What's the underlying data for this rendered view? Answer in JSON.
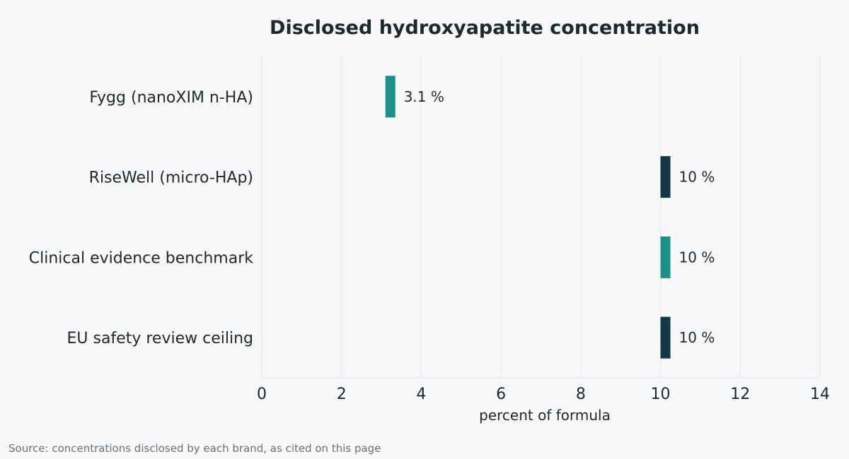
{
  "chart_data": {
    "type": "bar",
    "orientation": "horizontal",
    "title": "Disclosed hydroxyapatite concentration",
    "xlabel": "percent of formula",
    "ylabel": "",
    "categories": [
      "Fygg (nanoXIM n-HA)",
      "RiseWell (micro-HAp)",
      "Clinical evidence benchmark",
      "EU safety review ceiling"
    ],
    "values": [
      3.1,
      10,
      10,
      10
    ],
    "value_labels": [
      "3.1 %",
      "10 %",
      "10 %",
      "10 %"
    ],
    "bar_colors": [
      "#1a9088",
      "#0e3a4a",
      "#1a9088",
      "#0e3a4a"
    ],
    "xlim": [
      0,
      14
    ],
    "xticks": [
      0,
      2,
      4,
      6,
      8,
      10,
      12,
      14
    ],
    "grid": true
  },
  "footer": {
    "source": "Source: concentrations disclosed by each brand, as cited on this page"
  }
}
